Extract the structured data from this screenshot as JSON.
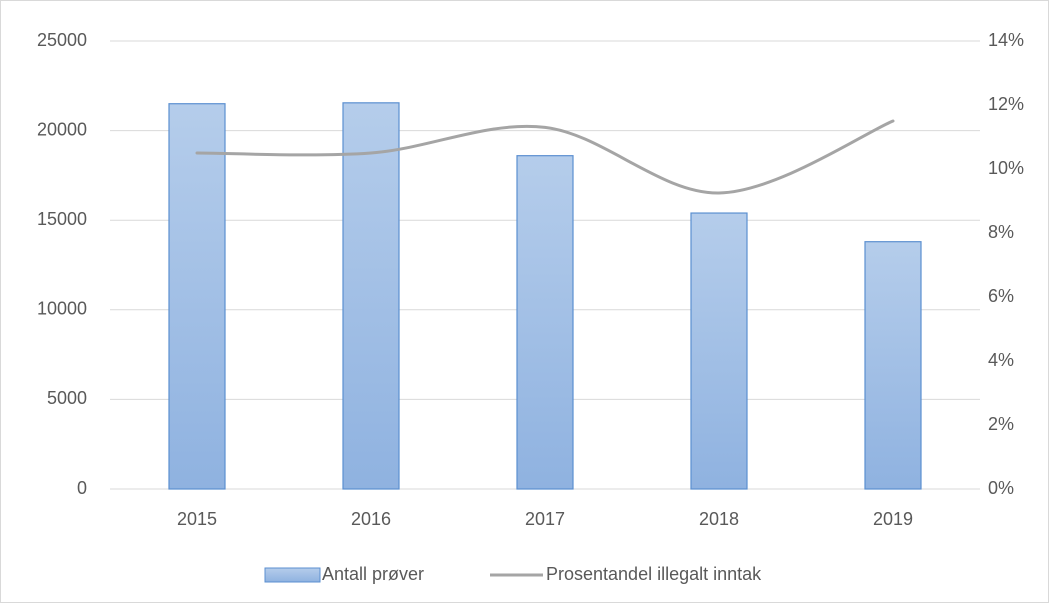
{
  "chart_data": {
    "type": "bar-line",
    "categories": [
      "2015",
      "2016",
      "2017",
      "2018",
      "2019"
    ],
    "series": [
      {
        "name": "Antall prøver",
        "type": "bar",
        "color": "#9dbde6",
        "values": [
          21500,
          21550,
          18600,
          15400,
          13800
        ]
      },
      {
        "name": "Prosentandel illegalt inntak",
        "type": "line",
        "axis": "y2",
        "color": "#a5a5a5",
        "values": [
          10.5,
          10.5,
          11.3,
          9.25,
          11.5
        ]
      }
    ],
    "ylim": [
      0,
      25000
    ],
    "yticks": [
      0,
      5000,
      10000,
      15000,
      20000,
      25000
    ],
    "y2lim": [
      0,
      14
    ],
    "y2ticks": [
      {
        "value": 0,
        "label": "0%"
      },
      {
        "value": 2,
        "label": "2%"
      },
      {
        "value": 4,
        "label": "4%"
      },
      {
        "value": 6,
        "label": "6%"
      },
      {
        "value": 8,
        "label": "8%"
      },
      {
        "value": 10,
        "label": "10%"
      },
      {
        "value": 12,
        "label": "12%"
      },
      {
        "value": 14,
        "label": "14%"
      }
    ],
    "grid": true,
    "legend": "bottom"
  }
}
